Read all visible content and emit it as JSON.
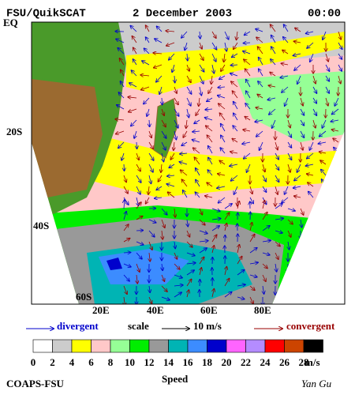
{
  "header": {
    "product": "FSU/QuikSCAT",
    "date": "2 December 2003",
    "time": "00:00"
  },
  "map": {
    "lat_labels": [
      "EQ",
      "20S",
      "40S",
      "60S"
    ],
    "lon_labels": [
      "20E",
      "40E",
      "60E",
      "80E"
    ]
  },
  "legend": {
    "divergent": "divergent",
    "scale": "scale",
    "scale_value": "10 m/s",
    "convergent": "convergent"
  },
  "colorbar": {
    "ticks": [
      0,
      2,
      4,
      6,
      8,
      10,
      12,
      14,
      16,
      18,
      20,
      22,
      24,
      26,
      28
    ],
    "unit": "m/s",
    "title": "Speed",
    "colors": [
      "#ffffff",
      "#cccccc",
      "#ffff00",
      "#ffc8c8",
      "#96ff96",
      "#00ee00",
      "#999999",
      "#00b4b4",
      "#3c8cff",
      "#0000cc",
      "#ff64ff",
      "#b48cff",
      "#ff0000",
      "#cc4400",
      "#000000"
    ]
  },
  "footer": {
    "organization": "COAPS-FSU",
    "author": "Yan Gu"
  }
}
